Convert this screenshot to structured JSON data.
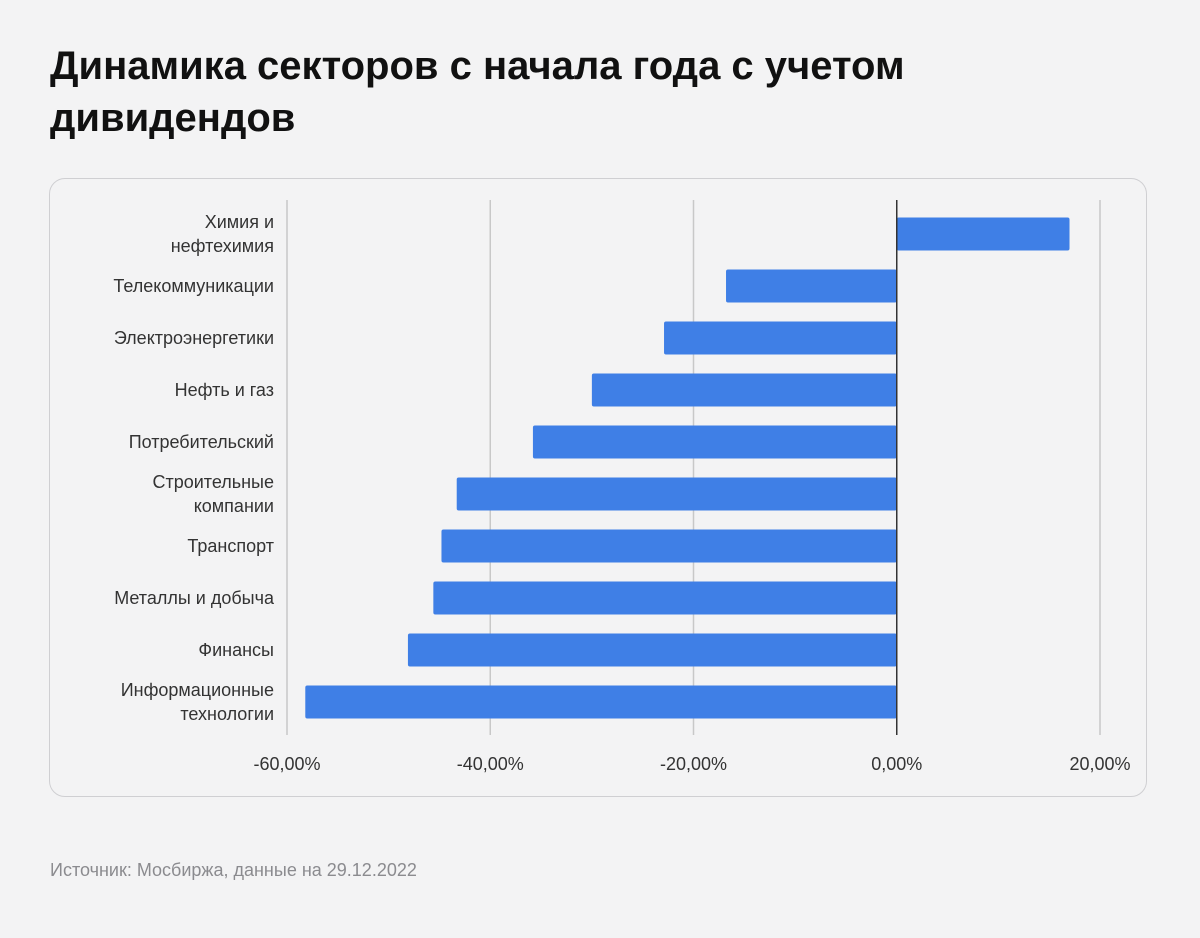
{
  "title": "Динамика секторов с начала года с учетом дивидендов",
  "source": "Источник: Мосбиржа, данные на 29.12.2022",
  "colors": {
    "bar": "#3f7fe6",
    "grid": "#c8c8c8",
    "zero": "#333333"
  },
  "chart_data": {
    "type": "bar",
    "orientation": "horizontal",
    "categories": [
      [
        "Химия и",
        "нефтехимия"
      ],
      [
        "Телекоммуникации"
      ],
      [
        "Электроэнергетики"
      ],
      [
        "Нефть и газ"
      ],
      [
        "Потребительский"
      ],
      [
        "Строительные",
        "компании"
      ],
      [
        "Транспорт"
      ],
      [
        "Металлы и добыча"
      ],
      [
        "Финансы"
      ],
      [
        "Информационные",
        "технологии"
      ]
    ],
    "values": [
      17.0,
      -16.8,
      -22.9,
      -30.0,
      -35.8,
      -43.3,
      -44.8,
      -45.6,
      -48.1,
      -58.2
    ],
    "xlim": [
      -60,
      20
    ],
    "xticks": [
      -60,
      -40,
      -20,
      0,
      20
    ],
    "xtick_labels": [
      "-60,00%",
      "-40,00%",
      "-20,00%",
      "0,00%",
      "20,00%"
    ],
    "grid": true,
    "xlabel": "",
    "ylabel": ""
  }
}
